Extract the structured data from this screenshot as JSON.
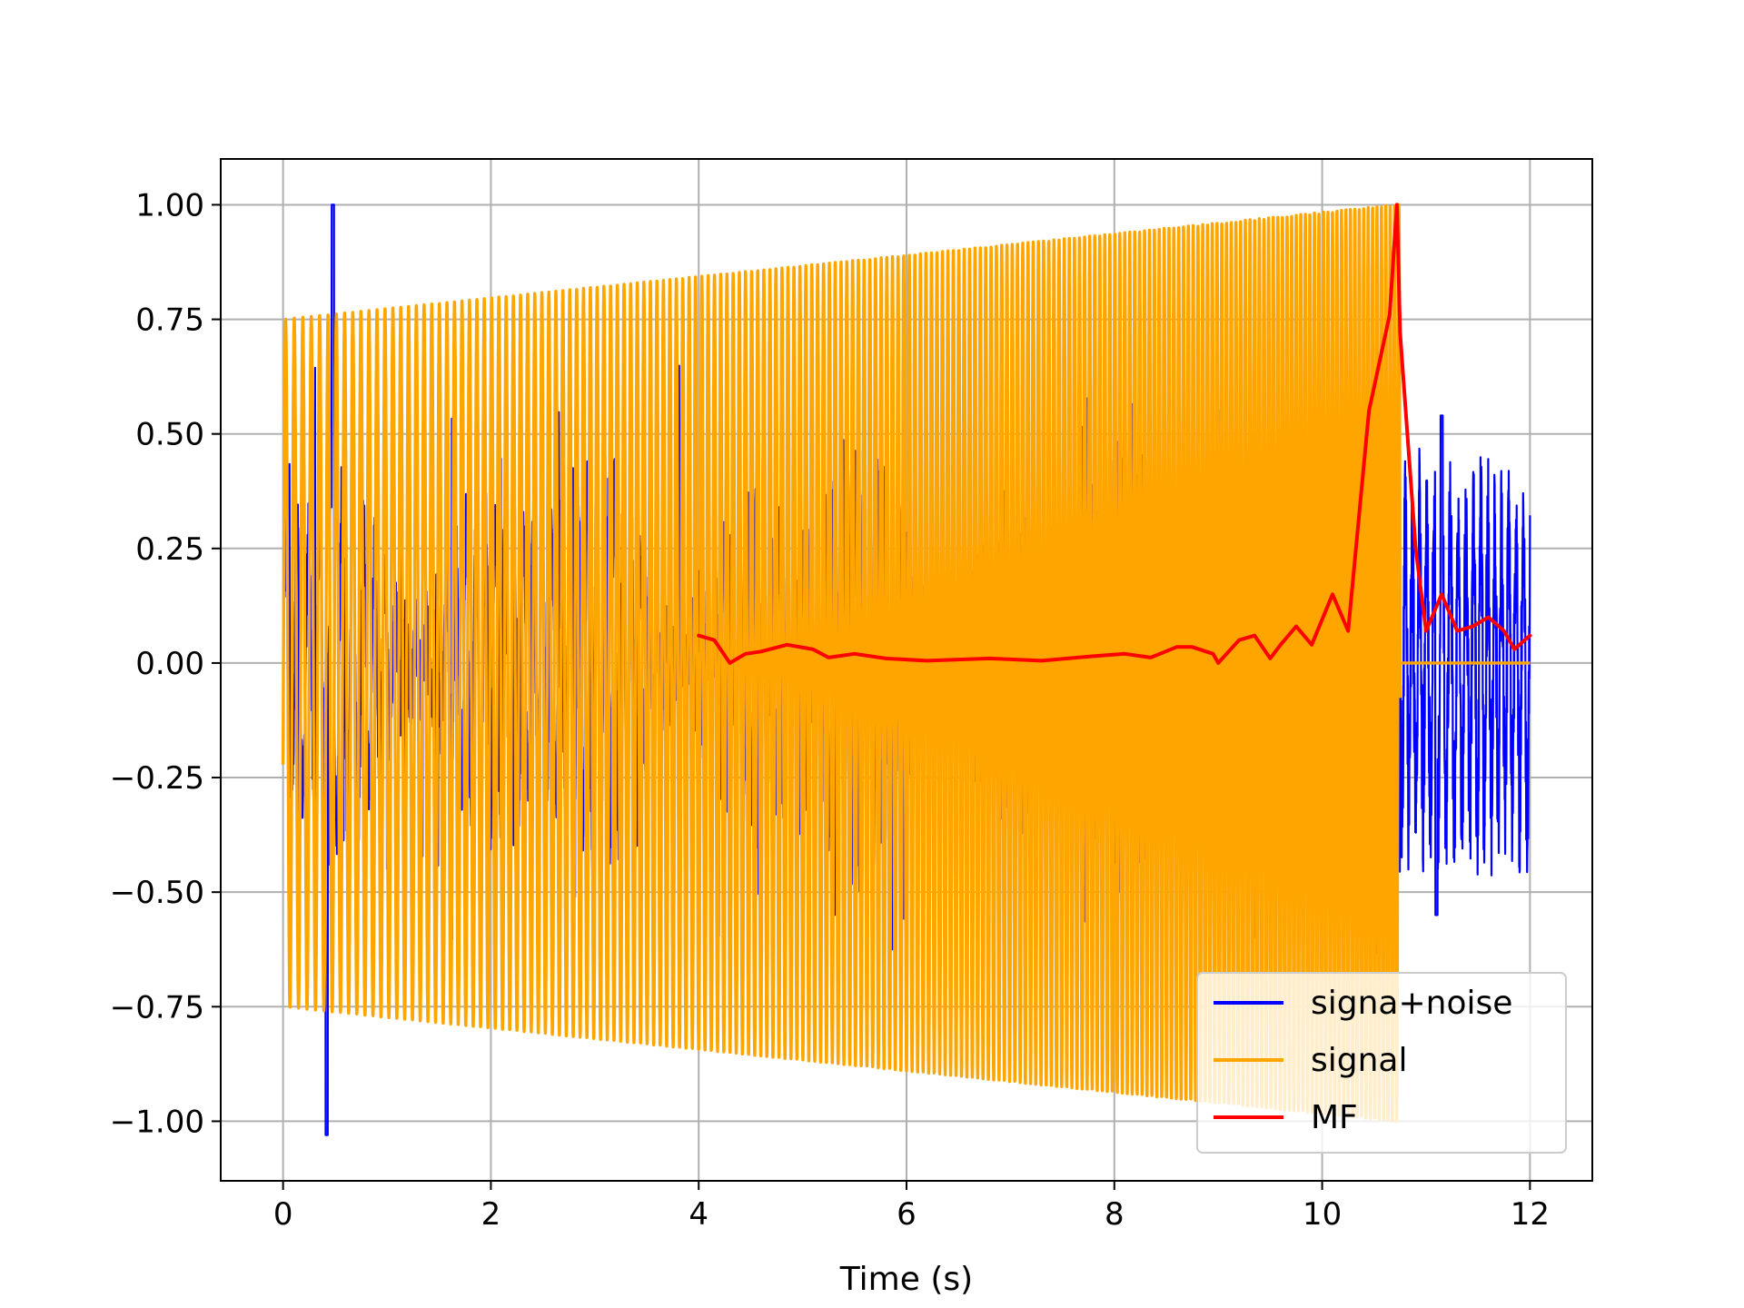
{
  "chart_data": {
    "type": "line",
    "title": "",
    "xlabel": "Time (s)",
    "ylabel": "",
    "xlim": [
      -0.6,
      12.6
    ],
    "ylim": [
      -1.13,
      1.1
    ],
    "xticks": [
      0,
      2,
      4,
      6,
      8,
      10,
      12
    ],
    "xtick_labels": [
      "0",
      "2",
      "4",
      "6",
      "8",
      "10",
      "12"
    ],
    "yticks": [
      1.0,
      0.75,
      0.5,
      0.25,
      0.0,
      -0.25,
      -0.5,
      -0.75,
      -1.0
    ],
    "ytick_labels": [
      "1.00",
      "0.75",
      "0.50",
      "0.25",
      "0.00",
      "−0.25",
      "−0.50",
      "−0.75",
      "−1.00"
    ],
    "grid": true,
    "legend_position": "lower-right",
    "series": [
      {
        "name": "signa+noise",
        "color": "#0000ff",
        "x_range": [
          0,
          12
        ],
        "approx_peaks": [
          {
            "x": 0.48,
            "y": 1.0
          },
          {
            "x": 0.42,
            "y": -1.03
          },
          {
            "x": 11.15,
            "y": 0.54
          },
          {
            "x": 11.1,
            "y": -0.55
          }
        ],
        "tail_region": {
          "x_start": 10.75,
          "x_end": 12.0,
          "amplitude_range": [
            -0.55,
            0.54
          ]
        }
      },
      {
        "name": "signal",
        "color": "#ffa500",
        "x_range": [
          0,
          10.75
        ],
        "envelope": [
          {
            "x": 0.0,
            "y": 0.75
          },
          {
            "x": 10.7,
            "y": 1.0
          }
        ],
        "after_end_value": 0.0
      },
      {
        "name": "MF",
        "color": "#ff0000",
        "points": [
          {
            "x": 4.0,
            "y": 0.06
          },
          {
            "x": 4.15,
            "y": 0.05
          },
          {
            "x": 4.3,
            "y": 0.0
          },
          {
            "x": 4.45,
            "y": 0.02
          },
          {
            "x": 4.6,
            "y": 0.025
          },
          {
            "x": 4.85,
            "y": 0.04
          },
          {
            "x": 5.1,
            "y": 0.03
          },
          {
            "x": 5.25,
            "y": 0.012
          },
          {
            "x": 5.5,
            "y": 0.02
          },
          {
            "x": 5.8,
            "y": 0.01
          },
          {
            "x": 6.2,
            "y": 0.005
          },
          {
            "x": 6.8,
            "y": 0.01
          },
          {
            "x": 7.3,
            "y": 0.005
          },
          {
            "x": 7.8,
            "y": 0.015
          },
          {
            "x": 8.1,
            "y": 0.02
          },
          {
            "x": 8.35,
            "y": 0.012
          },
          {
            "x": 8.6,
            "y": 0.035
          },
          {
            "x": 8.75,
            "y": 0.035
          },
          {
            "x": 8.95,
            "y": 0.02
          },
          {
            "x": 9.0,
            "y": 0.0
          },
          {
            "x": 9.2,
            "y": 0.05
          },
          {
            "x": 9.35,
            "y": 0.06
          },
          {
            "x": 9.5,
            "y": 0.01
          },
          {
            "x": 9.6,
            "y": 0.04
          },
          {
            "x": 9.75,
            "y": 0.08
          },
          {
            "x": 9.9,
            "y": 0.04
          },
          {
            "x": 10.1,
            "y": 0.15
          },
          {
            "x": 10.25,
            "y": 0.07
          },
          {
            "x": 10.45,
            "y": 0.55
          },
          {
            "x": 10.65,
            "y": 0.76
          },
          {
            "x": 10.72,
            "y": 1.0
          },
          {
            "x": 10.75,
            "y": 0.72
          },
          {
            "x": 10.9,
            "y": 0.25
          },
          {
            "x": 11.0,
            "y": 0.07
          },
          {
            "x": 11.15,
            "y": 0.15
          },
          {
            "x": 11.3,
            "y": 0.07
          },
          {
            "x": 11.45,
            "y": 0.08
          },
          {
            "x": 11.6,
            "y": 0.1
          },
          {
            "x": 11.75,
            "y": 0.07
          },
          {
            "x": 11.85,
            "y": 0.03
          },
          {
            "x": 11.95,
            "y": 0.05
          },
          {
            "x": 12.0,
            "y": 0.06
          }
        ]
      }
    ]
  }
}
